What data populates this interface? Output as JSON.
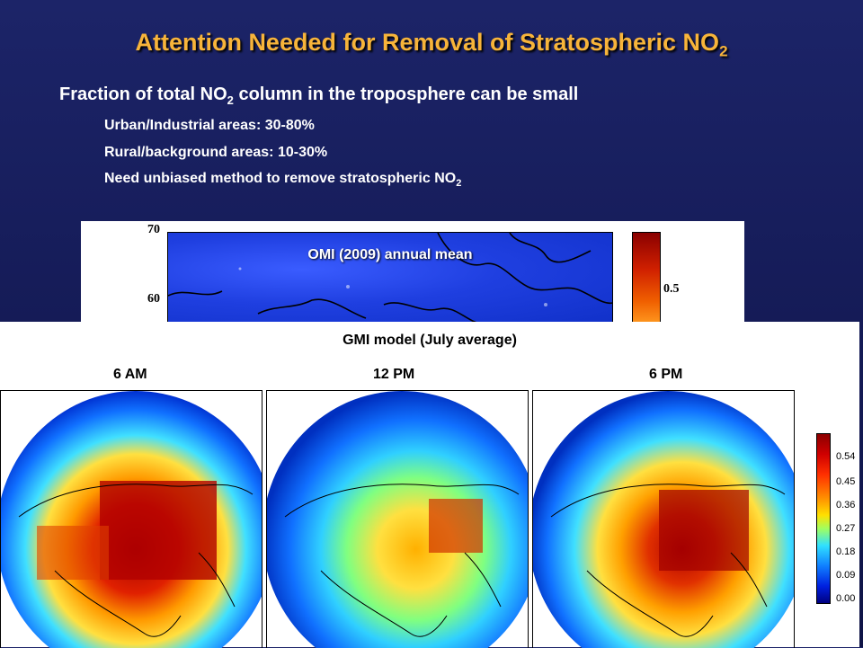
{
  "title_main": "Attention Needed for Removal of Stratospheric NO",
  "title_sub": "2",
  "bullet1": {
    "before": "Fraction of total NO",
    "sub": "2",
    "after": " column in the troposphere can be small"
  },
  "bullets2": [
    {
      "text": "Urban/Industrial areas:  30-80%"
    },
    {
      "text": "Rural/background areas:  10-30%"
    },
    {
      "text": "Need unbiased method to remove stratospheric NO",
      "sub": "2"
    }
  ],
  "omi": {
    "label": "OMI (2009) annual mean",
    "lat_ticks": [
      "70",
      "60"
    ],
    "colorbar_tick": "0.5"
  },
  "gmi": {
    "title": "GMI  model (July average)",
    "times": [
      "6 AM",
      "12 PM",
      "6 PM"
    ],
    "colorbar_ticks": [
      "0.54",
      "0.45",
      "0.36",
      "0.27",
      "0.18",
      "0.09",
      "0.00"
    ]
  },
  "colors": {
    "title": "#f7b43a",
    "background": "#1c2468"
  }
}
